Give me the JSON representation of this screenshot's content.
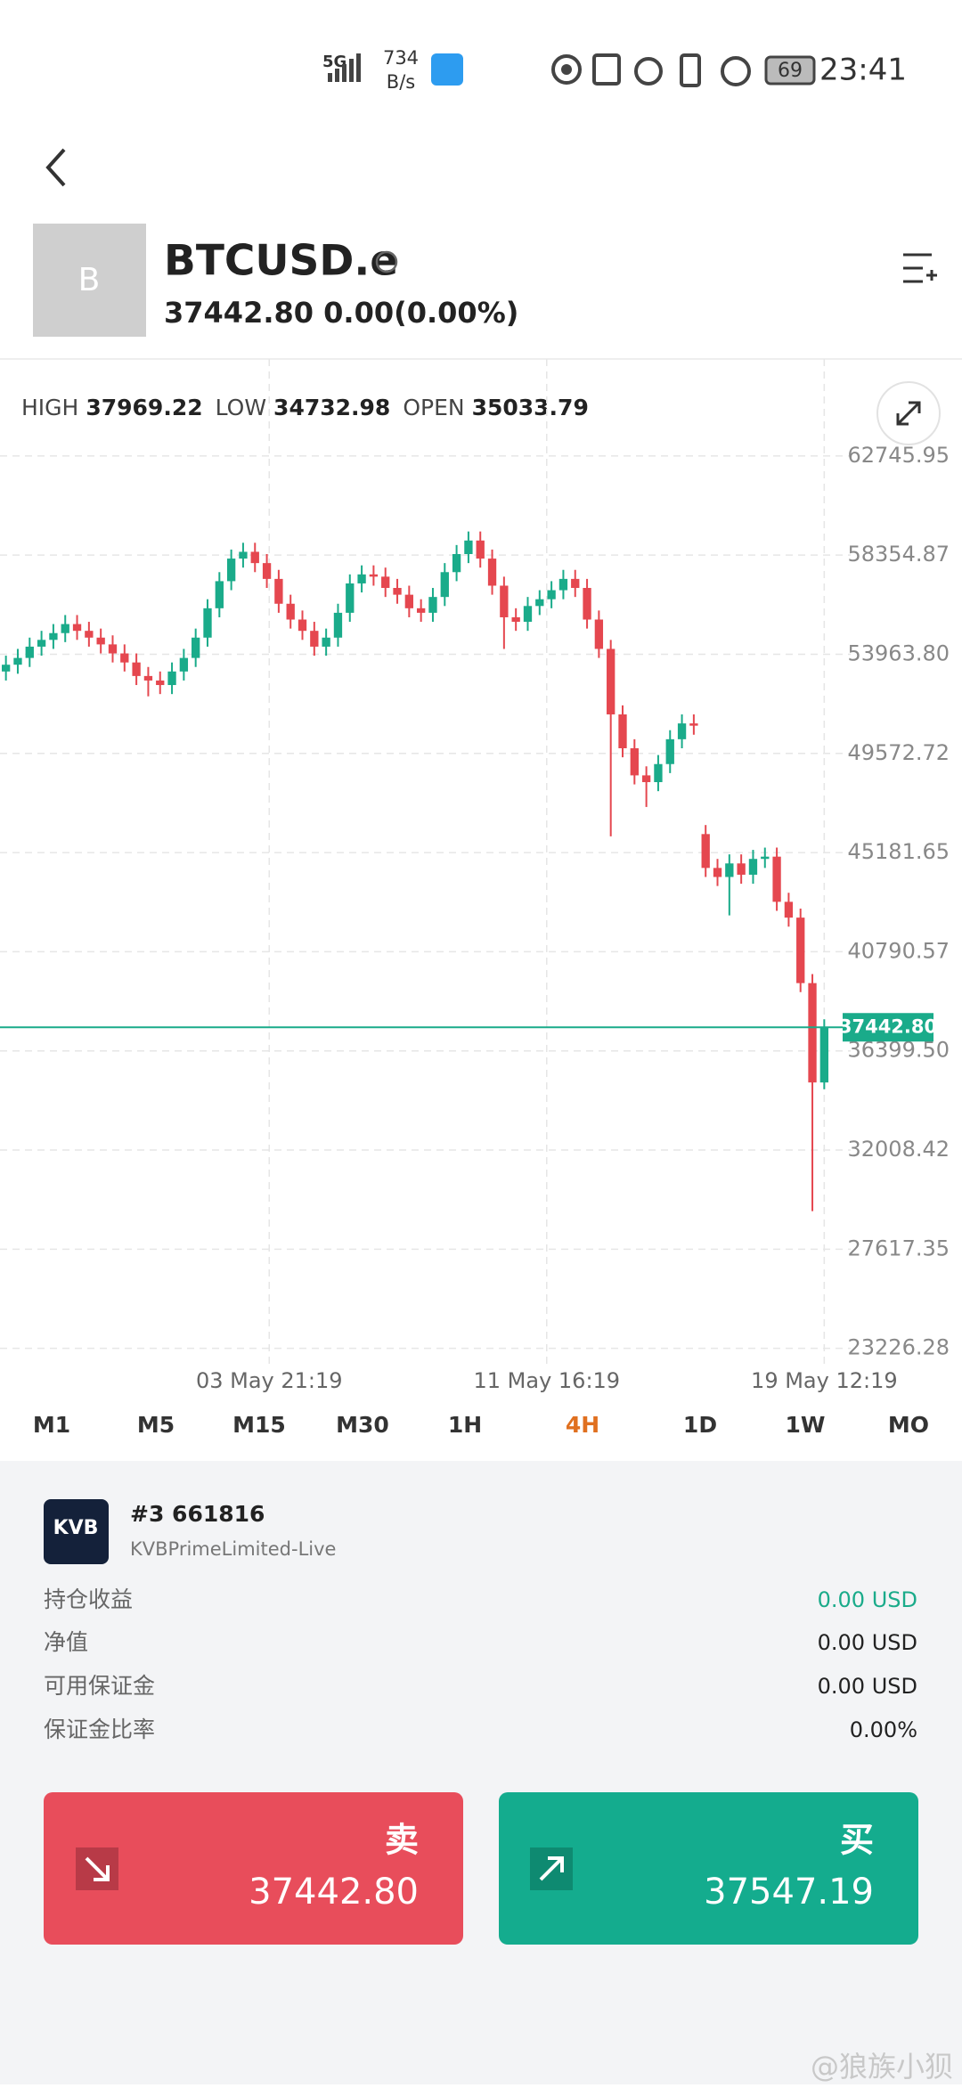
{
  "status_bar": {
    "network": "5G",
    "speed": "734",
    "speed_unit": "B/s",
    "battery": "69",
    "time": "23:41"
  },
  "header": {
    "logo_letter": "B",
    "symbol": "BTCUSD.e",
    "price": "37442.80",
    "change": "0.00(0.00%)"
  },
  "quote_stats": [
    {
      "label": "HIGH",
      "value": "37969.22"
    },
    {
      "label": "LOW",
      "value": "34732.98"
    },
    {
      "label": "OPEN",
      "value": "35033.79"
    }
  ],
  "chart_data": {
    "type": "candlestick",
    "up_color": "#1aab8a",
    "down_color": "#e5474f",
    "grid": true,
    "open": [
      53200,
      53500,
      53800,
      54300,
      54600,
      54900,
      55300,
      55000,
      54700,
      54400,
      54000,
      53600,
      53000,
      52800,
      52600,
      53200,
      53800,
      54700,
      56000,
      57200,
      58200,
      58500,
      58000,
      57300,
      56200,
      55500,
      55000,
      54300,
      54700,
      55800,
      57100,
      57500,
      57400,
      56900,
      56600,
      56000,
      55800,
      56500,
      57600,
      58400,
      59000,
      58200,
      57000,
      55600,
      55400,
      56100,
      56400,
      56800,
      57300,
      56900,
      55500,
      54200,
      51300,
      49800,
      48600,
      48300,
      49100,
      50200,
      50900,
      46000,
      44500,
      44100,
      44700,
      44200,
      44900,
      45000,
      43000,
      42300,
      39400,
      35000
    ],
    "high": [
      53900,
      54200,
      54700,
      55000,
      55300,
      55700,
      55700,
      55400,
      55100,
      54800,
      54400,
      54000,
      53400,
      53200,
      53600,
      54200,
      55100,
      56400,
      57600,
      58600,
      58900,
      58900,
      58400,
      57700,
      56600,
      55900,
      55400,
      55100,
      56200,
      57500,
      57900,
      57900,
      57800,
      57300,
      57000,
      56400,
      56900,
      58000,
      58800,
      59400,
      59400,
      58600,
      57400,
      56000,
      56500,
      56800,
      57200,
      57700,
      57700,
      57300,
      55900,
      54600,
      51700,
      50200,
      49000,
      49500,
      50600,
      51300,
      51300,
      46400,
      44900,
      45100,
      45100,
      45300,
      45400,
      45400,
      43400,
      42700,
      39800,
      37800
    ],
    "low": [
      52800,
      53100,
      53400,
      53900,
      54200,
      54500,
      54600,
      54300,
      54000,
      53600,
      53200,
      52600,
      52100,
      52200,
      52200,
      52800,
      53400,
      54300,
      55600,
      56800,
      57800,
      57600,
      56900,
      55800,
      55100,
      54600,
      53900,
      53900,
      54300,
      55400,
      56700,
      57000,
      56500,
      56200,
      55600,
      55400,
      55400,
      56100,
      57200,
      58000,
      57800,
      56600,
      54200,
      55000,
      55000,
      55700,
      56000,
      56400,
      56500,
      55100,
      53800,
      45900,
      49400,
      48200,
      47200,
      47900,
      48700,
      49800,
      50400,
      44100,
      43700,
      42400,
      43800,
      43800,
      44500,
      42600,
      41900,
      39000,
      29300,
      34700
    ],
    "close": [
      53500,
      53800,
      54300,
      54600,
      54900,
      55300,
      55000,
      54700,
      54400,
      54000,
      53600,
      53000,
      52800,
      52600,
      53200,
      53800,
      54700,
      56000,
      57200,
      58200,
      58500,
      58000,
      57300,
      56200,
      55500,
      55000,
      54300,
      54700,
      55800,
      57100,
      57500,
      57400,
      56900,
      56600,
      56000,
      55800,
      56500,
      57600,
      58400,
      59000,
      58200,
      57000,
      55600,
      55400,
      56100,
      56400,
      56800,
      57300,
      56900,
      55500,
      54200,
      51300,
      49800,
      48600,
      48300,
      49100,
      50200,
      50900,
      50800,
      44500,
      44100,
      44700,
      44200,
      44900,
      45000,
      43000,
      42300,
      39400,
      35000,
      37442.8
    ],
    "xlim": [
      -0.5,
      69.5
    ],
    "xticks": [
      {
        "value": 22.2,
        "label": "03 May  21:19"
      },
      {
        "value": 45.6,
        "label": "11 May  16:19"
      },
      {
        "value": 69,
        "label": "19 May  12:19"
      }
    ],
    "ylim": [
      22344,
      67039
    ],
    "yticks": [
      62745.95,
      58354.87,
      {
        "value": 53963.8,
        "label": "53963.80"
      },
      49572.72,
      45181.65,
      40790.57,
      {
        "value": 36399.5,
        "label": "36399.50"
      },
      32008.42,
      27617.35,
      23226.28
    ],
    "price_line": {
      "value": 37442.8,
      "label": "37442.80",
      "color": "#1aab8a"
    }
  },
  "timeframes": {
    "items": [
      "M1",
      "M5",
      "M15",
      "M30",
      "1H",
      "4H",
      "1D",
      "1W",
      "MO"
    ],
    "active": 5
  },
  "account": {
    "logo": "KVB",
    "id": "#3 661816",
    "server": "KVBPrimeLimited-Live",
    "rows": [
      [
        "持仓收益",
        "0.00 USD"
      ],
      [
        "净值",
        "0.00 USD"
      ],
      [
        "可用保证金",
        "0.00 USD"
      ],
      [
        "保证金比率",
        "0.00%"
      ]
    ]
  },
  "trade": {
    "sell": {
      "label": "卖",
      "price": "37442.80"
    },
    "buy": {
      "label": "买",
      "price": "37547.19"
    }
  },
  "watermark": "@狼族小狈"
}
